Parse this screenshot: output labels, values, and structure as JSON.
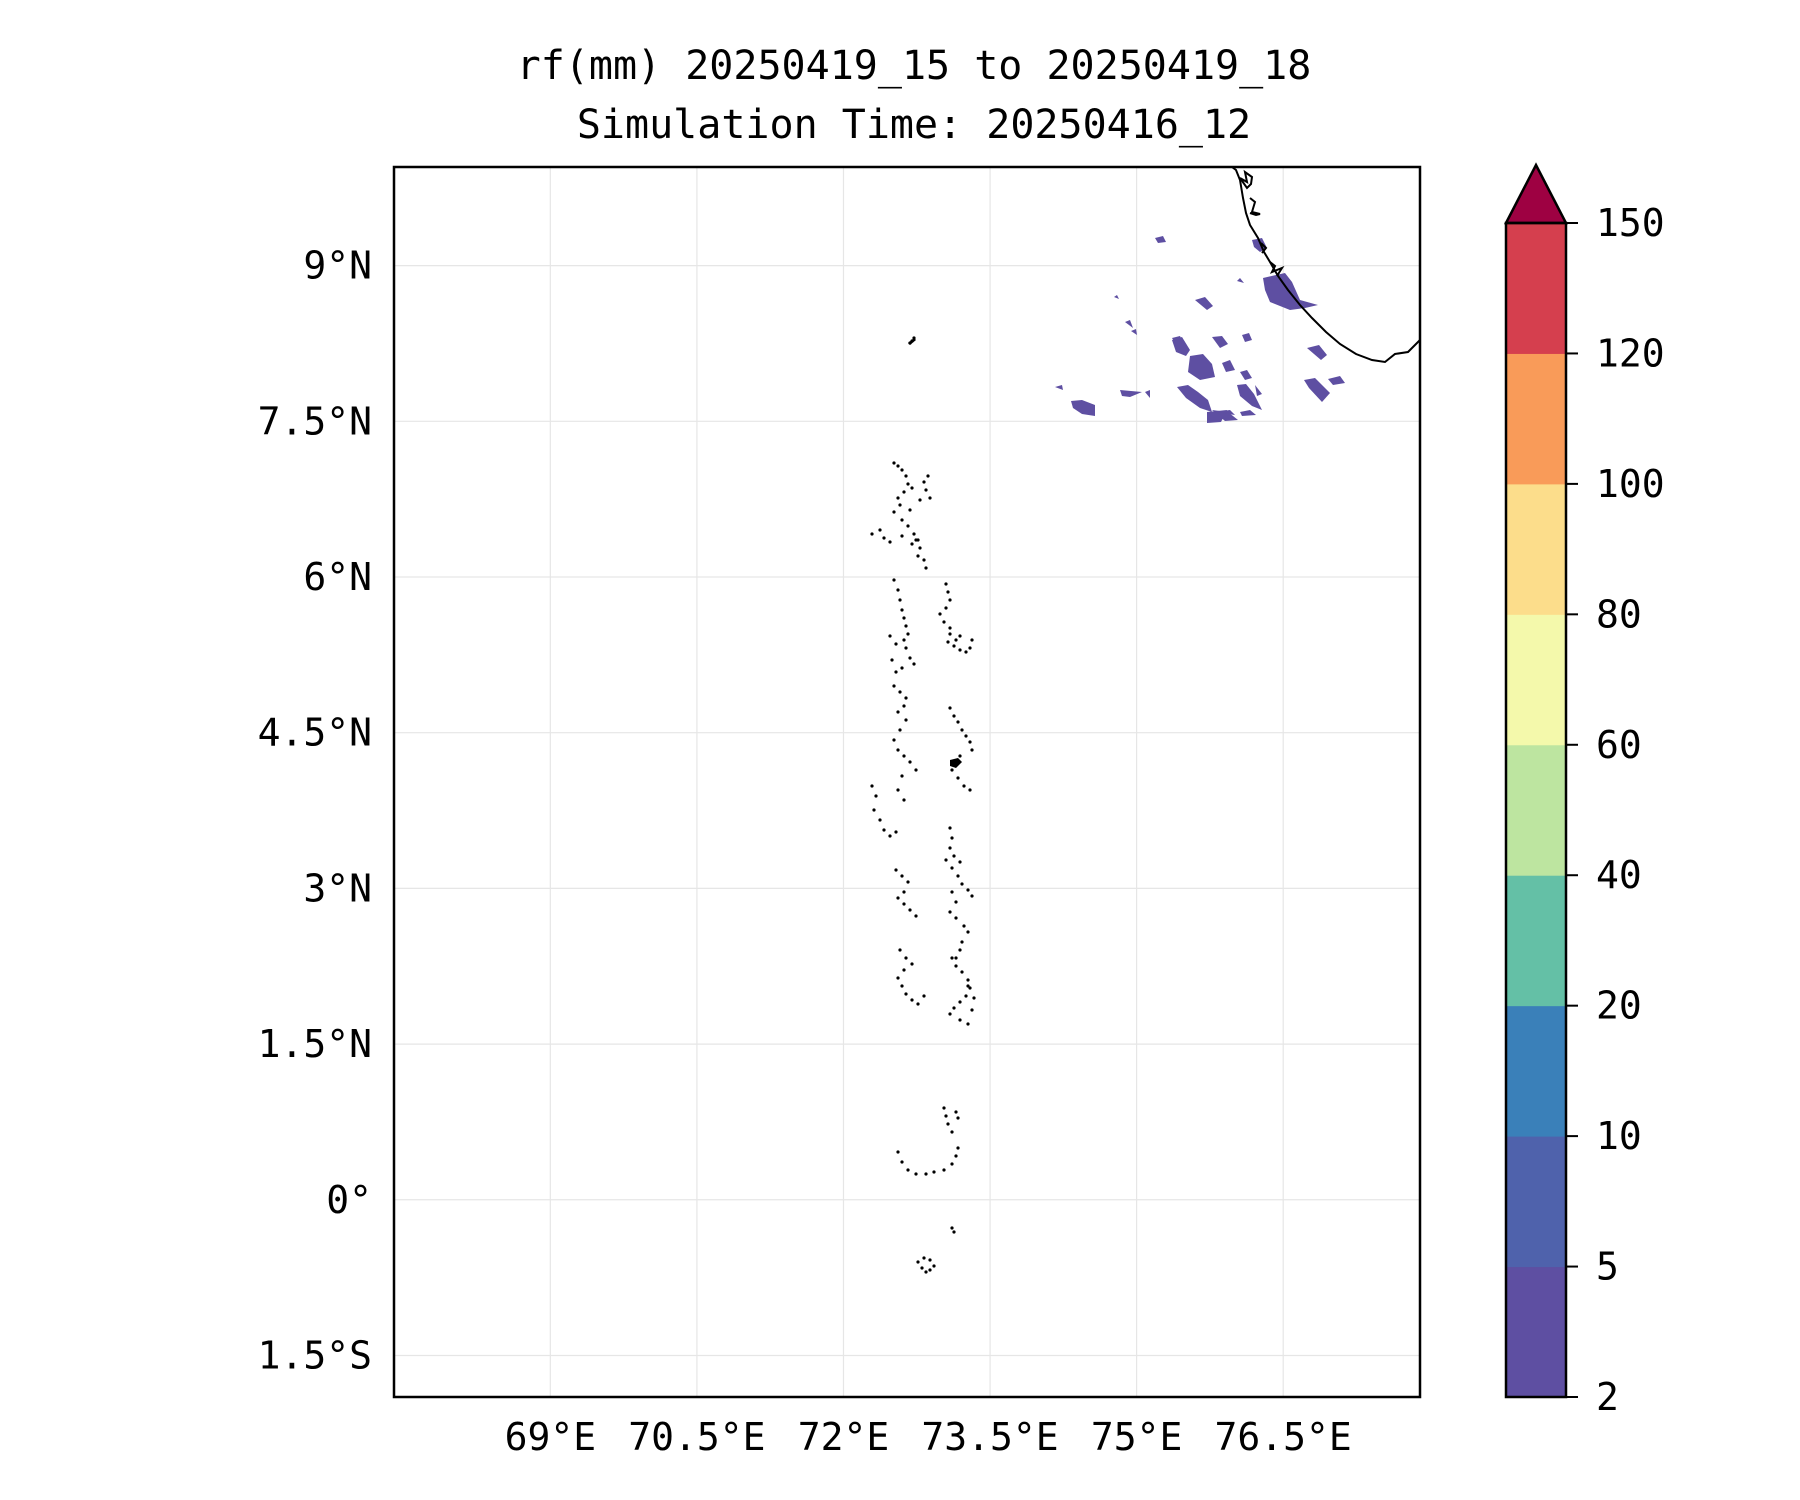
{
  "title": {
    "line1": "rf(mm) 20250419_15 to 20250419_18",
    "line2": "Simulation Time: 20250416_12"
  },
  "map": {
    "lon_range": [
      67.4,
      77.9
    ],
    "lat_range": [
      -1.9,
      9.95
    ],
    "lon_ticks": [
      69,
      70.5,
      72,
      73.5,
      75,
      76.5
    ],
    "lon_tick_labels": [
      "69°E",
      "70.5°E",
      "72°E",
      "73.5°E",
      "75°E",
      "76.5°E"
    ],
    "lat_ticks": [
      9,
      7.5,
      6,
      4.5,
      3,
      1.5,
      0,
      -1.5
    ],
    "lat_tick_labels": [
      "9°N",
      "7.5°N",
      "6°N",
      "4.5°N",
      "3°N",
      "1.5°N",
      "0°",
      "1.5°S"
    ],
    "gridlines": true,
    "gridline_color": "#e6e6e6",
    "coastline_color": "#000000",
    "rain_color": "#5e4fa2"
  },
  "colorbar": {
    "levels": [
      "2",
      "5",
      "10",
      "20",
      "40",
      "60",
      "80",
      "100",
      "120",
      "150"
    ],
    "colors": [
      "#5e4fa2",
      "#4f62ac",
      "#3a80b9",
      "#64c0a6",
      "#bde5a0",
      "#f4f9ab",
      "#fcdd8b",
      "#f99b59",
      "#d53f4e"
    ],
    "extend_color": "#9e0142",
    "extend": "max"
  }
}
